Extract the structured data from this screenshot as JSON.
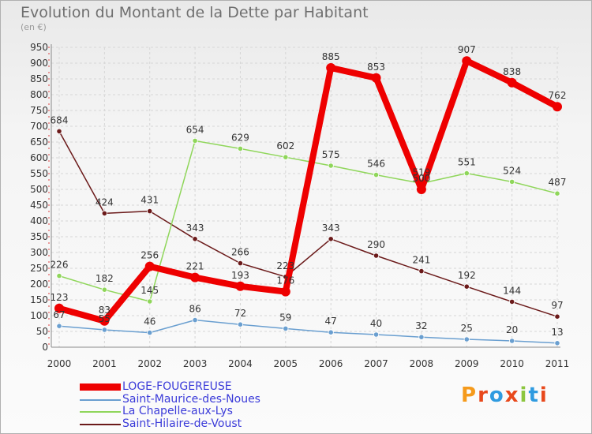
{
  "title": "Evolution du Montant de la Dette par Habitant",
  "subtitle": "(en €)",
  "brand": "Proxiti",
  "chart_data": {
    "type": "line",
    "title": "Evolution du Montant de la Dette par Habitant",
    "ylabel": "(en €)",
    "x": [
      "2000",
      "2001",
      "2002",
      "2003",
      "2004",
      "2005",
      "2006",
      "2007",
      "2008",
      "2009",
      "2010",
      "2011"
    ],
    "ylim": [
      0,
      950
    ],
    "yticks": [
      0,
      50,
      100,
      150,
      200,
      250,
      300,
      350,
      400,
      450,
      500,
      550,
      600,
      650,
      700,
      750,
      800,
      850,
      900,
      950
    ],
    "grid": true,
    "legend_position": "bottom-left",
    "series": [
      {
        "name": "Saint-Hilaire-de-Voust",
        "color": "#6b1a1a",
        "values": [
          684,
          424,
          431,
          343,
          266,
          223,
          343,
          290,
          241,
          192,
          144,
          97
        ]
      },
      {
        "name": "La Chapelle-aux-Lys",
        "color": "#8fd65a",
        "values": [
          226,
          182,
          145,
          654,
          629,
          602,
          575,
          546,
          519,
          551,
          524,
          487
        ]
      },
      {
        "name": "Saint-Maurice-des-Noues",
        "color": "#6a9fd0",
        "values": [
          67,
          55,
          46,
          86,
          72,
          59,
          47,
          40,
          32,
          25,
          20,
          13
        ]
      },
      {
        "name": "LOGE-FOUGEREUSE",
        "color": "#ee0000",
        "values": [
          123,
          83,
          256,
          221,
          193,
          176,
          885,
          853,
          500,
          907,
          838,
          762
        ]
      }
    ],
    "point_labels": [
      [
        "684",
        "424",
        "431",
        "343",
        "266",
        "223",
        "343",
        "290",
        "241",
        "192",
        "144",
        "97"
      ],
      [
        "226",
        "182",
        "145",
        "654",
        "629",
        "602",
        "575",
        "546",
        "519",
        "551",
        "524",
        "487"
      ],
      [
        "67",
        "55",
        "46",
        "86",
        "72",
        "59",
        "47",
        "40",
        "32",
        "25",
        "20",
        "13"
      ],
      [
        "123",
        "83",
        "256",
        "221",
        "193",
        "176",
        "885",
        "853",
        "500",
        "907",
        "838",
        "762"
      ]
    ]
  },
  "legend": [
    {
      "label": "LOGE-FOUGEREUSE",
      "color": "#ee0000",
      "text_color": "#3b3bd9"
    },
    {
      "label": "Saint-Maurice-des-Noues",
      "color": "#6a9fd0",
      "text_color": "#3b3bd9"
    },
    {
      "label": "La Chapelle-aux-Lys",
      "color": "#8fd65a",
      "text_color": "#3b3bd9"
    },
    {
      "label": "Saint-Hilaire-de-Voust",
      "color": "#6b1a1a",
      "text_color": "#3b3bd9"
    }
  ]
}
